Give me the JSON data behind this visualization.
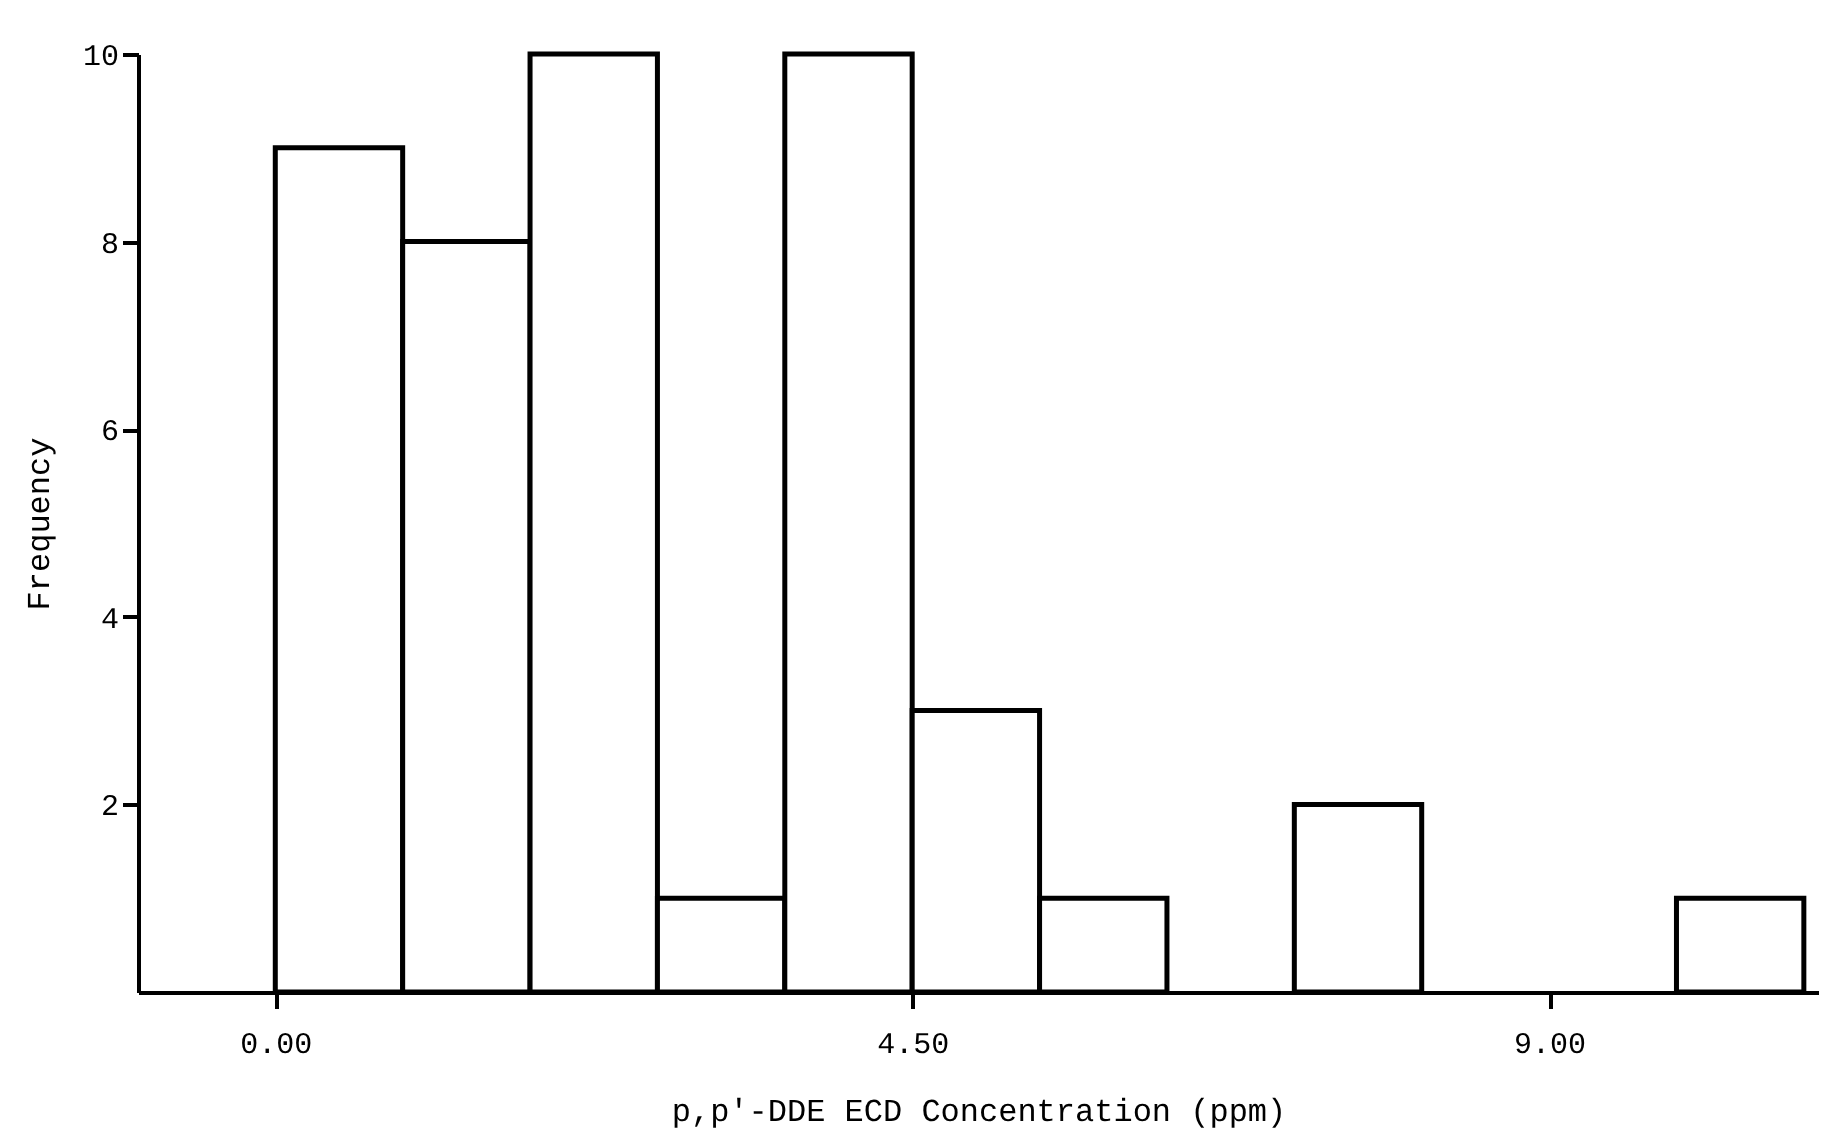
{
  "chart_data": {
    "type": "histogram",
    "xlabel": "p,p'-DDE ECD Concentration (ppm)",
    "ylabel": "Frequency",
    "bins": [
      0,
      0.9,
      1.8,
      2.7,
      3.6,
      4.5,
      5.4,
      6.3,
      7.2,
      8.1,
      9.0,
      9.9,
      10.8
    ],
    "values": [
      9,
      8,
      10,
      1,
      10,
      3,
      1,
      0,
      2,
      0,
      0,
      1
    ],
    "color": "#ffffff",
    "xlim": [
      -0.97,
      10.9
    ],
    "ylim": [
      0,
      10
    ],
    "xticks": [
      {
        "value": 0,
        "label": "0.00"
      },
      {
        "value": 4.5,
        "label": "4.50"
      },
      {
        "value": 9.0,
        "label": "9.00"
      }
    ],
    "yticks": [
      2,
      4,
      6,
      8,
      10
    ],
    "grid": false
  }
}
